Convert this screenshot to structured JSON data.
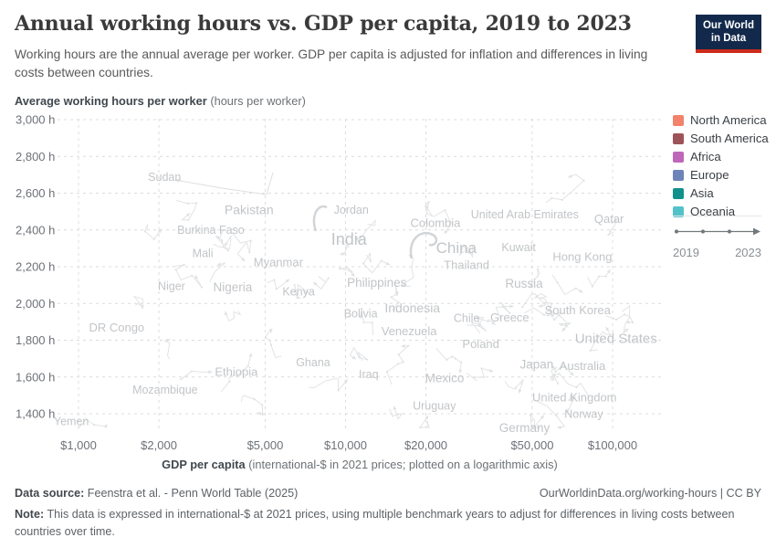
{
  "header": {
    "title": "Annual working hours vs. GDP per capita, 2019 to 2023",
    "subtitle": "Working hours are the annual average per worker. GDP per capita is adjusted for inflation and differences in living costs between countries."
  },
  "logo": {
    "line1": "Our World",
    "line2": "in Data"
  },
  "chart_data": {
    "type": "scatter",
    "title": "Annual working hours vs. GDP per capita, 2019 to 2023",
    "x_axis": {
      "label_bold": "GDP per capita",
      "label_note": "(international-$ in 2021 prices; plotted on a logarithmic axis)",
      "scale": "log",
      "range": [
        815,
        157000
      ],
      "ticks": [
        {
          "value": 1000,
          "label": "$1,000"
        },
        {
          "value": 2000,
          "label": "$2,000"
        },
        {
          "value": 5000,
          "label": "$5,000"
        },
        {
          "value": 10000,
          "label": "$10,000"
        },
        {
          "value": 20000,
          "label": "$20,000"
        },
        {
          "value": 50000,
          "label": "$50,000"
        },
        {
          "value": 100000,
          "label": "$100,000"
        }
      ]
    },
    "y_axis": {
      "label_bold": "Average working hours per worker",
      "label_note": "(hours per worker)",
      "scale": "linear",
      "range": [
        1315,
        3040
      ],
      "ticks": [
        {
          "value": 3000,
          "label": "3,000 h"
        },
        {
          "value": 2800,
          "label": "2,800 h"
        },
        {
          "value": 2600,
          "label": "2,600 h"
        },
        {
          "value": 2400,
          "label": "2,400 h"
        },
        {
          "value": 2200,
          "label": "2,200 h"
        },
        {
          "value": 2000,
          "label": "2,000 h"
        },
        {
          "value": 1800,
          "label": "1,800 h"
        },
        {
          "value": 1600,
          "label": "1,600 h"
        },
        {
          "value": 1400,
          "label": "1,400 h"
        }
      ]
    },
    "legend": {
      "entries": [
        {
          "label": "North America",
          "color": "#F2826B"
        },
        {
          "label": "South America",
          "color": "#9D5458"
        },
        {
          "label": "Africa",
          "color": "#BE67B8"
        },
        {
          "label": "Europe",
          "color": "#6D84B8"
        },
        {
          "label": "Asia",
          "color": "#12908C"
        },
        {
          "label": "Oceania",
          "color": "#53C2C8"
        }
      ]
    },
    "timeline": {
      "start": "2019",
      "end": "2023"
    },
    "points": [
      {
        "name": "Sudan",
        "gdp_per_capita": 2100,
        "working_hours": 2690,
        "label_size": 12.5
      },
      {
        "name": "Pakistan",
        "gdp_per_capita": 4350,
        "working_hours": 2510,
        "label_size": 14
      },
      {
        "name": "Jordan",
        "gdp_per_capita": 10500,
        "working_hours": 2510,
        "label_size": 12.5
      },
      {
        "name": "United Arab Emirates",
        "gdp_per_capita": 46900,
        "working_hours": 2485,
        "label_size": 12.5
      },
      {
        "name": "Qatar",
        "gdp_per_capita": 97000,
        "working_hours": 2460,
        "label_size": 13
      },
      {
        "name": "Colombia",
        "gdp_per_capita": 21700,
        "working_hours": 2440,
        "label_size": 13
      },
      {
        "name": "Burkina Faso",
        "gdp_per_capita": 3130,
        "working_hours": 2400,
        "label_size": 12.5
      },
      {
        "name": "India",
        "gdp_per_capita": 10300,
        "working_hours": 2350,
        "label_size": 18
      },
      {
        "name": "China",
        "gdp_per_capita": 26000,
        "working_hours": 2305,
        "label_size": 17
      },
      {
        "name": "Kuwait",
        "gdp_per_capita": 44500,
        "working_hours": 2305,
        "label_size": 12.5
      },
      {
        "name": "Mali",
        "gdp_per_capita": 2920,
        "working_hours": 2275,
        "label_size": 12.5
      },
      {
        "name": "Hong Kong",
        "gdp_per_capita": 77100,
        "working_hours": 2255,
        "label_size": 13
      },
      {
        "name": "Myanmar",
        "gdp_per_capita": 5600,
        "working_hours": 2225,
        "label_size": 13
      },
      {
        "name": "Thailand",
        "gdp_per_capita": 28400,
        "working_hours": 2210,
        "label_size": 13
      },
      {
        "name": "Philippines",
        "gdp_per_capita": 13100,
        "working_hours": 2115,
        "label_size": 13.5
      },
      {
        "name": "Russia",
        "gdp_per_capita": 46600,
        "working_hours": 2110,
        "label_size": 13.5
      },
      {
        "name": "Niger",
        "gdp_per_capita": 2230,
        "working_hours": 2095,
        "label_size": 12.5
      },
      {
        "name": "Nigeria",
        "gdp_per_capita": 3780,
        "working_hours": 2090,
        "label_size": 13.5
      },
      {
        "name": "Kenya",
        "gdp_per_capita": 6670,
        "working_hours": 2065,
        "label_size": 12.5
      },
      {
        "name": "Indonesia",
        "gdp_per_capita": 17800,
        "working_hours": 1975,
        "label_size": 14
      },
      {
        "name": "South Korea",
        "gdp_per_capita": 74000,
        "working_hours": 1965,
        "label_size": 13
      },
      {
        "name": "Bolivia",
        "gdp_per_capita": 11400,
        "working_hours": 1945,
        "label_size": 12.5
      },
      {
        "name": "Greece",
        "gdp_per_capita": 41200,
        "working_hours": 1925,
        "label_size": 13
      },
      {
        "name": "Chile",
        "gdp_per_capita": 28400,
        "working_hours": 1920,
        "label_size": 12.5
      },
      {
        "name": "DR Congo",
        "gdp_per_capita": 1390,
        "working_hours": 1870,
        "label_size": 13
      },
      {
        "name": "Venezuela",
        "gdp_per_capita": 17300,
        "working_hours": 1850,
        "label_size": 13
      },
      {
        "name": "United States",
        "gdp_per_capita": 103000,
        "working_hours": 1810,
        "label_size": 15
      },
      {
        "name": "Poland",
        "gdp_per_capita": 32100,
        "working_hours": 1780,
        "label_size": 13
      },
      {
        "name": "Ghana",
        "gdp_per_capita": 7560,
        "working_hours": 1680,
        "label_size": 12.5
      },
      {
        "name": "Japan",
        "gdp_per_capita": 52000,
        "working_hours": 1670,
        "label_size": 13.5
      },
      {
        "name": "Australia",
        "gdp_per_capita": 77100,
        "working_hours": 1660,
        "label_size": 13
      },
      {
        "name": "Ethiopia",
        "gdp_per_capita": 3900,
        "working_hours": 1630,
        "label_size": 13
      },
      {
        "name": "Iraq",
        "gdp_per_capita": 12200,
        "working_hours": 1615,
        "label_size": 12.5
      },
      {
        "name": "Mexico",
        "gdp_per_capita": 23500,
        "working_hours": 1595,
        "label_size": 13.5
      },
      {
        "name": "Mozambique",
        "gdp_per_capita": 2110,
        "working_hours": 1530,
        "label_size": 12.5
      },
      {
        "name": "United Kingdom",
        "gdp_per_capita": 72000,
        "working_hours": 1490,
        "label_size": 13
      },
      {
        "name": "Uruguay",
        "gdp_per_capita": 21500,
        "working_hours": 1445,
        "label_size": 12.5
      },
      {
        "name": "Norway",
        "gdp_per_capita": 78000,
        "working_hours": 1400,
        "label_size": 12.5
      },
      {
        "name": "Yemen",
        "gdp_per_capita": 940,
        "working_hours": 1360,
        "label_size": 12.5
      },
      {
        "name": "Germany",
        "gdp_per_capita": 46800,
        "working_hours": 1325,
        "label_size": 13.5
      }
    ]
  },
  "footer": {
    "source_label": "Data source:",
    "source_value": "Feenstra et al. - Penn World Table (2025)",
    "link": "OurWorldinData.org/working-hours | CC BY",
    "note_label": "Note:",
    "note_value": "This data is expressed in international-$ at 2021 prices, using multiple benchmark years to adjust for differences in living costs between countries over time."
  }
}
